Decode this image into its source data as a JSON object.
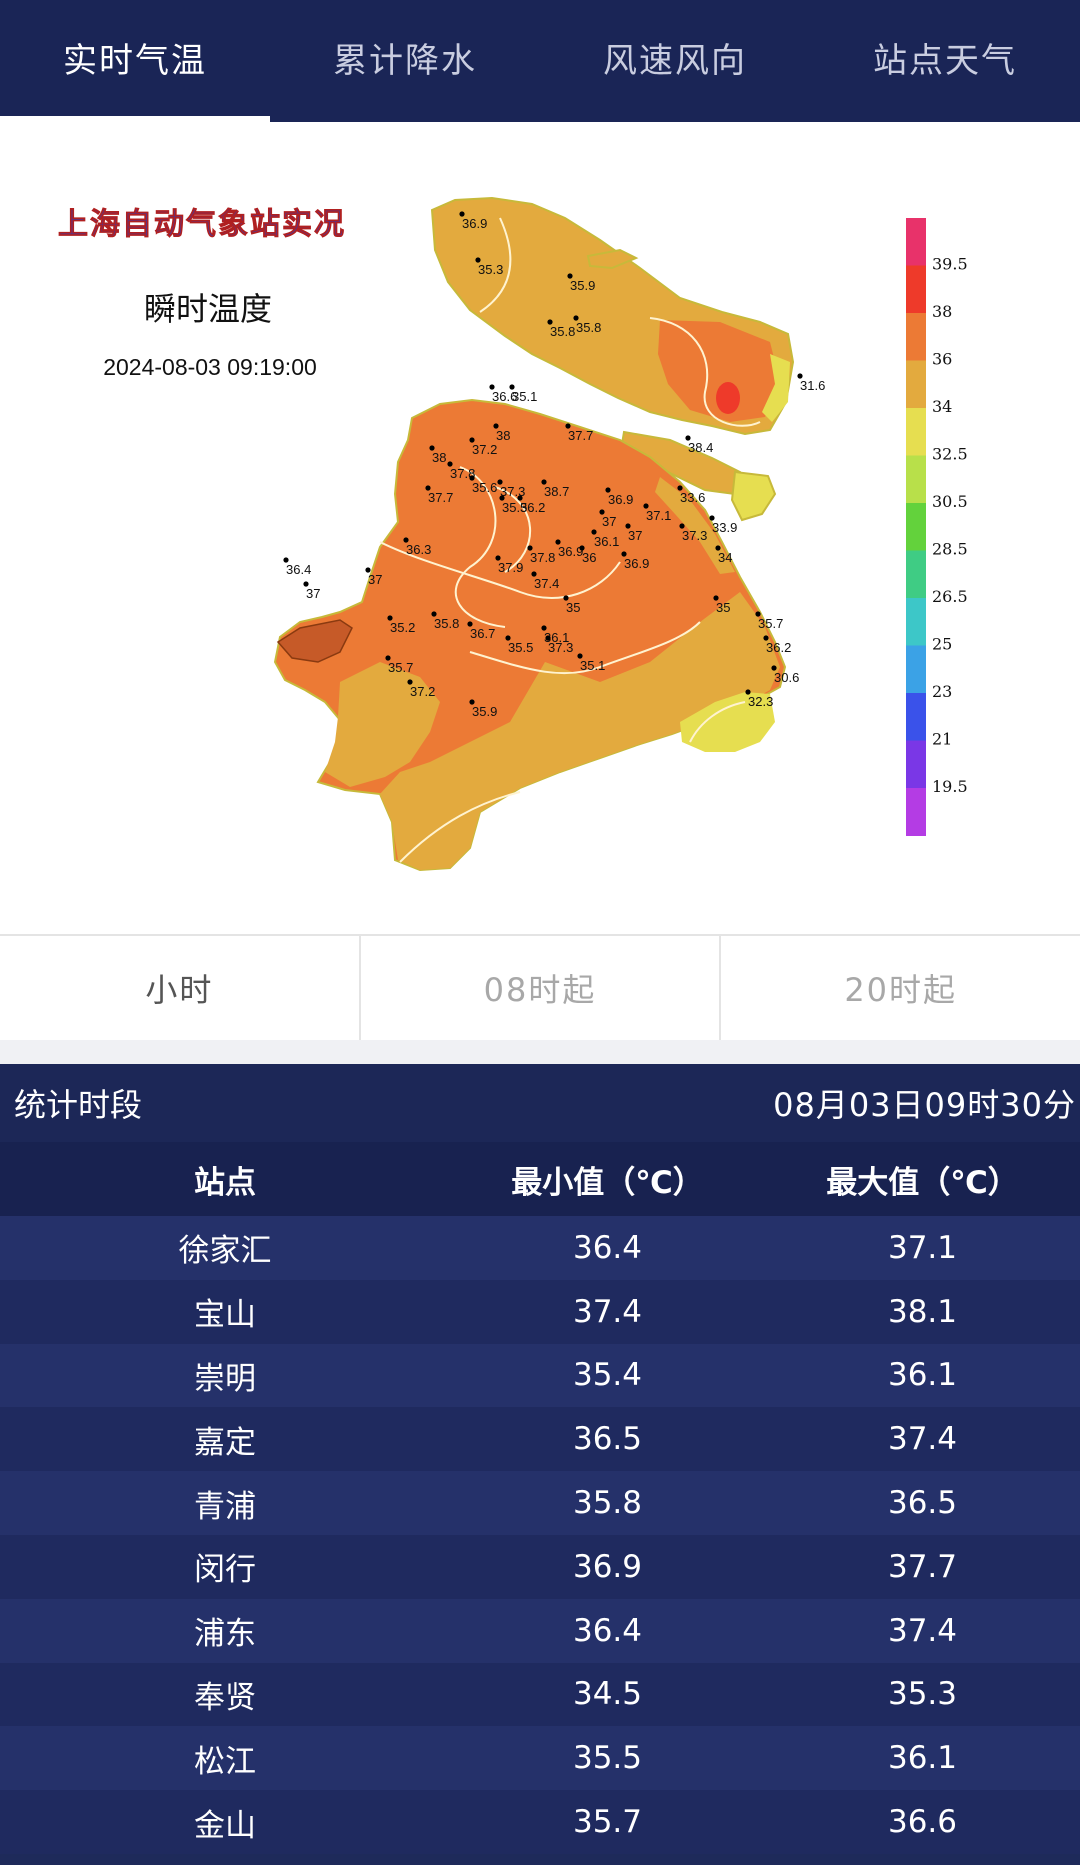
{
  "tabs": [
    {
      "label": "实时气温",
      "active": true
    },
    {
      "label": "累计降水",
      "active": false
    },
    {
      "label": "风速风向",
      "active": false
    },
    {
      "label": "站点天气",
      "active": false
    }
  ],
  "map": {
    "banner": "上海自动气象站实况",
    "title": "瞬时温度",
    "datetime": "2024-08-03 09:19:00",
    "legend_labels": [
      "39.5",
      "38",
      "36",
      "34",
      "32.5",
      "30.5",
      "28.5",
      "26.5",
      "25",
      "23",
      "21",
      "19.5"
    ],
    "legend_colors": [
      "#e8326a",
      "#ee3a2a",
      "#ec7a35",
      "#e3aa3e",
      "#e6de50",
      "#b8e04a",
      "#63d23c",
      "#3fcc84",
      "#3dc7c8",
      "#3ba2e6",
      "#3a52ea",
      "#7a37e6",
      "#b43ce4"
    ],
    "stations": [
      {
        "value": "36.9"
      },
      {
        "value": "35.3"
      },
      {
        "value": "35.9"
      },
      {
        "value": "35.8"
      },
      {
        "value": "35.8"
      },
      {
        "value": "31.6"
      },
      {
        "value": "36.6"
      },
      {
        "value": "35.1"
      },
      {
        "value": "38"
      },
      {
        "value": "37.2"
      },
      {
        "value": "38"
      },
      {
        "value": "37.7"
      },
      {
        "value": "37.8"
      },
      {
        "value": "35.6"
      },
      {
        "value": "37.3"
      },
      {
        "value": "38.7"
      },
      {
        "value": "35.5"
      },
      {
        "value": "36.2"
      },
      {
        "value": "37.7"
      },
      {
        "value": "38.4"
      },
      {
        "value": "33.6"
      },
      {
        "value": "36.9"
      },
      {
        "value": "37.1"
      },
      {
        "value": "37"
      },
      {
        "value": "37"
      },
      {
        "value": "37.3"
      },
      {
        "value": "33.9"
      },
      {
        "value": "36.1"
      },
      {
        "value": "34"
      },
      {
        "value": "36.3"
      },
      {
        "value": "37.8"
      },
      {
        "value": "36.9"
      },
      {
        "value": "36"
      },
      {
        "value": "36.9"
      },
      {
        "value": "37.9"
      },
      {
        "value": "37.4"
      },
      {
        "value": "36.4"
      },
      {
        "value": "37"
      },
      {
        "value": "37"
      },
      {
        "value": "35"
      },
      {
        "value": "35"
      },
      {
        "value": "35.2"
      },
      {
        "value": "35.8"
      },
      {
        "value": "36.7"
      },
      {
        "value": "36.1"
      },
      {
        "value": "35.7"
      },
      {
        "value": "35.5"
      },
      {
        "value": "37.3"
      },
      {
        "value": "35.1"
      },
      {
        "value": "35.7"
      },
      {
        "value": "36.2"
      },
      {
        "value": "30.6"
      },
      {
        "value": "37.2"
      },
      {
        "value": "35.9"
      },
      {
        "value": "32.3"
      }
    ]
  },
  "periods": [
    {
      "label": "小时",
      "active": true
    },
    {
      "label": "08时起",
      "active": false
    },
    {
      "label": "20时起",
      "active": false
    }
  ],
  "stats": {
    "label": "统计时段",
    "time": "08月03日09时30分",
    "columns": [
      "站点",
      "最小值（℃）",
      "最大值（℃）"
    ],
    "rows": [
      {
        "station": "徐家汇",
        "min": "36.4",
        "max": "37.1"
      },
      {
        "station": "宝山",
        "min": "37.4",
        "max": "38.1"
      },
      {
        "station": "崇明",
        "min": "35.4",
        "max": "36.1"
      },
      {
        "station": "嘉定",
        "min": "36.5",
        "max": "37.4"
      },
      {
        "station": "青浦",
        "min": "35.8",
        "max": "36.5"
      },
      {
        "station": "闵行",
        "min": "36.9",
        "max": "37.7"
      },
      {
        "station": "浦东",
        "min": "36.4",
        "max": "37.4"
      },
      {
        "station": "奉贤",
        "min": "34.5",
        "max": "35.3"
      },
      {
        "station": "松江",
        "min": "35.5",
        "max": "36.1"
      },
      {
        "station": "金山",
        "min": "35.7",
        "max": "36.6"
      }
    ]
  }
}
